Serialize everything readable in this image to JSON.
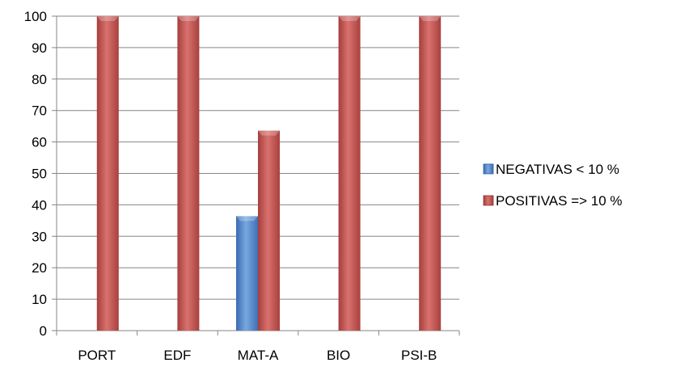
{
  "chart_data": {
    "type": "bar",
    "categories": [
      "PORT",
      "EDF",
      "MAT-A",
      "BIO",
      "PSI-B"
    ],
    "series": [
      {
        "name": "NEGATIVAS < 10 %",
        "values": [
          0,
          0,
          36.4,
          0,
          0
        ],
        "color": "#4F81BD"
      },
      {
        "name": "POSITIVAS => 10 %",
        "values": [
          100,
          100,
          63.6,
          100,
          100
        ],
        "color": "#C0504D"
      }
    ],
    "ylim": [
      0,
      100
    ],
    "yticks": [
      0,
      10,
      20,
      30,
      40,
      50,
      60,
      70,
      80,
      90,
      100
    ],
    "grid": true,
    "legend_position": "right",
    "title": "",
    "xlabel": "",
    "ylabel": ""
  }
}
